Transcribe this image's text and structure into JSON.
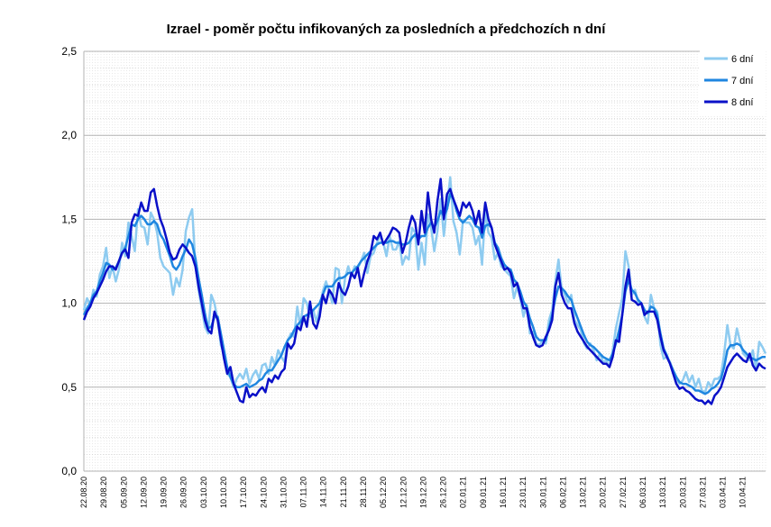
{
  "chart_data": {
    "type": "line",
    "title": "Izrael - poměr počtu infikovaných za posledních a předchozích n dní",
    "xlabel": "",
    "ylabel": "",
    "ylim": [
      0,
      2.5
    ],
    "y_ticks": [
      {
        "value": 0,
        "label": "0,0"
      },
      {
        "value": 0.5,
        "label": "0,5"
      },
      {
        "value": 1,
        "label": "1,0"
      },
      {
        "value": 1.5,
        "label": "1,5"
      },
      {
        "value": 2,
        "label": "2,0"
      },
      {
        "value": 2.5,
        "label": "2,5"
      }
    ],
    "x_start": "2020-08-22",
    "x_end": "2021-04-18",
    "x_tick_labels": [
      "22.08.20",
      "29.08.20",
      "05.09.20",
      "12.09.20",
      "19.09.20",
      "26.09.20",
      "03.10.20",
      "10.10.20",
      "17.10.20",
      "24.10.20",
      "31.10.20",
      "07.11.20",
      "14.11.20",
      "21.11.20",
      "28.11.20",
      "05.12.20",
      "12.12.20",
      "19.12.20",
      "26.12.20",
      "02.01.21",
      "09.01.21",
      "16.01.21",
      "23.01.21",
      "30.01.21",
      "06.02.21",
      "13.02.21",
      "20.02.21",
      "27.02.21",
      "06.03.21",
      "13.03.21",
      "20.03.21",
      "27.03.21",
      "03.04.21",
      "10.04.21"
    ],
    "grid": {
      "major_y": true,
      "minor_y": true,
      "vertical_daily": true
    },
    "legend_position": "top-right",
    "series": [
      {
        "name": "6 dní",
        "color": "#8ecbf0",
        "values": [
          0.96,
          1.03,
          0.99,
          1.08,
          1.04,
          1.17,
          1.22,
          1.33,
          1.15,
          1.22,
          1.13,
          1.2,
          1.36,
          1.28,
          1.48,
          1.4,
          1.31,
          1.56,
          1.46,
          1.45,
          1.35,
          1.54,
          1.5,
          1.42,
          1.27,
          1.22,
          1.2,
          1.18,
          1.05,
          1.15,
          1.1,
          1.2,
          1.43,
          1.51,
          1.56,
          1.24,
          1.08,
          0.97,
          0.86,
          0.82,
          1.05,
          1.0,
          0.9,
          0.75,
          0.7,
          0.58,
          0.56,
          0.5,
          0.55,
          0.58,
          0.55,
          0.61,
          0.52,
          0.57,
          0.6,
          0.55,
          0.63,
          0.64,
          0.58,
          0.68,
          0.63,
          0.72,
          0.68,
          0.65,
          0.78,
          0.82,
          0.8,
          0.98,
          0.86,
          1.03,
          1.0,
          0.92,
          0.96,
          0.89,
          0.97,
          1.07,
          1.13,
          1.07,
          1.0,
          1.21,
          1.2,
          1.0,
          1.15,
          1.22,
          1.16,
          1.22,
          1.21,
          1.25,
          1.3,
          1.18,
          1.28,
          1.3,
          1.36,
          1.4,
          1.36,
          1.28,
          1.4,
          1.32,
          1.32,
          1.37,
          1.23,
          1.28,
          1.26,
          1.45,
          1.42,
          1.2,
          1.36,
          1.23,
          1.53,
          1.45,
          1.31,
          1.43,
          1.62,
          1.4,
          1.58,
          1.75,
          1.49,
          1.42,
          1.29,
          1.49,
          1.48,
          1.48,
          1.45,
          1.35,
          1.4,
          1.23,
          1.55,
          1.42,
          1.39,
          1.26,
          1.3,
          1.22,
          1.2,
          1.18,
          1.16,
          1.03,
          1.1,
          1.03,
          0.92,
          0.99,
          0.82,
          0.83,
          0.76,
          0.75,
          0.78,
          0.76,
          0.9,
          0.96,
          1.13,
          1.26,
          1.08,
          1.05,
          1.0,
          1.05,
          0.9,
          0.87,
          0.84,
          0.76,
          0.73,
          0.76,
          0.72,
          0.66,
          0.7,
          0.65,
          0.66,
          0.62,
          0.72,
          0.85,
          0.94,
          1.03,
          1.31,
          1.22,
          1.05,
          1.08,
          1.0,
          1.0,
          0.92,
          0.88,
          1.05,
          0.97,
          0.95,
          0.75,
          0.67,
          0.68,
          0.65,
          0.6,
          0.55,
          0.52,
          0.54,
          0.59,
          0.53,
          0.57,
          0.5,
          0.55,
          0.48,
          0.47,
          0.53,
          0.5,
          0.55,
          0.55,
          0.57,
          0.7,
          0.87,
          0.75,
          0.73,
          0.85,
          0.77,
          0.7,
          0.68,
          0.66,
          0.72,
          0.6,
          0.77,
          0.74,
          0.7
        ]
      },
      {
        "name": "7 dní",
        "color": "#1f86e0",
        "values": [
          0.93,
          0.97,
          1.0,
          1.05,
          1.07,
          1.13,
          1.18,
          1.24,
          1.23,
          1.2,
          1.21,
          1.25,
          1.3,
          1.33,
          1.4,
          1.47,
          1.46,
          1.5,
          1.52,
          1.5,
          1.47,
          1.47,
          1.49,
          1.47,
          1.41,
          1.38,
          1.33,
          1.28,
          1.22,
          1.2,
          1.23,
          1.28,
          1.32,
          1.38,
          1.35,
          1.27,
          1.15,
          1.05,
          0.94,
          0.85,
          0.86,
          0.92,
          0.92,
          0.82,
          0.72,
          0.62,
          0.56,
          0.52,
          0.5,
          0.5,
          0.51,
          0.52,
          0.5,
          0.51,
          0.52,
          0.54,
          0.55,
          0.58,
          0.6,
          0.6,
          0.63,
          0.66,
          0.69,
          0.74,
          0.78,
          0.8,
          0.84,
          0.87,
          0.89,
          0.92,
          0.93,
          0.94,
          0.96,
          0.98,
          1.0,
          1.05,
          1.1,
          1.1,
          1.1,
          1.13,
          1.15,
          1.15,
          1.16,
          1.18,
          1.18,
          1.2,
          1.22,
          1.25,
          1.27,
          1.29,
          1.31,
          1.33,
          1.35,
          1.36,
          1.36,
          1.36,
          1.37,
          1.37,
          1.36,
          1.36,
          1.35,
          1.35,
          1.36,
          1.39,
          1.41,
          1.38,
          1.4,
          1.4,
          1.45,
          1.48,
          1.45,
          1.49,
          1.55,
          1.52,
          1.56,
          1.65,
          1.62,
          1.55,
          1.5,
          1.48,
          1.5,
          1.52,
          1.5,
          1.46,
          1.45,
          1.39,
          1.46,
          1.47,
          1.45,
          1.36,
          1.33,
          1.27,
          1.23,
          1.21,
          1.2,
          1.14,
          1.12,
          1.07,
          1.01,
          0.98,
          0.91,
          0.86,
          0.8,
          0.78,
          0.78,
          0.78,
          0.85,
          0.93,
          1.03,
          1.1,
          1.09,
          1.07,
          1.04,
          1.02,
          0.96,
          0.91,
          0.86,
          0.81,
          0.77,
          0.75,
          0.74,
          0.72,
          0.7,
          0.68,
          0.67,
          0.66,
          0.7,
          0.76,
          0.84,
          0.93,
          1.07,
          1.14,
          1.08,
          1.06,
          1.02,
          1.0,
          0.96,
          0.94,
          0.98,
          0.97,
          0.93,
          0.82,
          0.73,
          0.69,
          0.64,
          0.6,
          0.56,
          0.53,
          0.52,
          0.52,
          0.51,
          0.5,
          0.48,
          0.48,
          0.47,
          0.46,
          0.47,
          0.49,
          0.5,
          0.52,
          0.55,
          0.62,
          0.72,
          0.75,
          0.75,
          0.76,
          0.75,
          0.72,
          0.7,
          0.68,
          0.67,
          0.66,
          0.67,
          0.68,
          0.68
        ]
      },
      {
        "name": "8 dní",
        "color": "#0a10c8",
        "values": [
          0.9,
          0.95,
          0.98,
          1.03,
          1.06,
          1.1,
          1.14,
          1.19,
          1.22,
          1.22,
          1.2,
          1.25,
          1.3,
          1.32,
          1.27,
          1.48,
          1.53,
          1.52,
          1.6,
          1.55,
          1.55,
          1.66,
          1.68,
          1.58,
          1.5,
          1.45,
          1.38,
          1.3,
          1.26,
          1.27,
          1.32,
          1.35,
          1.33,
          1.3,
          1.28,
          1.22,
          1.1,
          1.0,
          0.9,
          0.84,
          0.82,
          0.95,
          0.9,
          0.78,
          0.67,
          0.58,
          0.62,
          0.52,
          0.47,
          0.42,
          0.41,
          0.5,
          0.44,
          0.46,
          0.45,
          0.48,
          0.5,
          0.47,
          0.55,
          0.53,
          0.57,
          0.55,
          0.59,
          0.61,
          0.76,
          0.73,
          0.76,
          0.86,
          0.84,
          0.92,
          0.86,
          1.01,
          0.88,
          0.85,
          0.92,
          1.05,
          1.0,
          1.08,
          1.05,
          1.0,
          1.12,
          1.07,
          1.05,
          1.1,
          1.18,
          1.15,
          1.21,
          1.1,
          1.18,
          1.25,
          1.3,
          1.4,
          1.38,
          1.42,
          1.35,
          1.38,
          1.41,
          1.45,
          1.44,
          1.42,
          1.3,
          1.36,
          1.45,
          1.52,
          1.48,
          1.35,
          1.55,
          1.42,
          1.66,
          1.5,
          1.42,
          1.61,
          1.74,
          1.5,
          1.65,
          1.68,
          1.62,
          1.57,
          1.52,
          1.6,
          1.57,
          1.6,
          1.55,
          1.47,
          1.55,
          1.42,
          1.6,
          1.5,
          1.45,
          1.35,
          1.3,
          1.25,
          1.2,
          1.21,
          1.18,
          1.1,
          1.12,
          1.04,
          0.97,
          0.97,
          0.86,
          0.8,
          0.75,
          0.74,
          0.75,
          0.8,
          0.84,
          0.9,
          1.1,
          1.18,
          1.05,
          1.0,
          0.97,
          0.97,
          0.88,
          0.83,
          0.8,
          0.77,
          0.74,
          0.72,
          0.7,
          0.68,
          0.66,
          0.64,
          0.64,
          0.62,
          0.68,
          0.78,
          0.77,
          0.93,
          1.1,
          1.2,
          1.02,
          1.01,
          0.99,
          1.0,
          0.93,
          0.95,
          0.95,
          0.95,
          0.9,
          0.8,
          0.72,
          0.68,
          0.64,
          0.58,
          0.52,
          0.49,
          0.5,
          0.48,
          0.47,
          0.45,
          0.43,
          0.42,
          0.42,
          0.4,
          0.42,
          0.4,
          0.45,
          0.47,
          0.5,
          0.56,
          0.62,
          0.65,
          0.68,
          0.7,
          0.68,
          0.66,
          0.65,
          0.7,
          0.63,
          0.6,
          0.64,
          0.62,
          0.61
        ]
      }
    ]
  }
}
